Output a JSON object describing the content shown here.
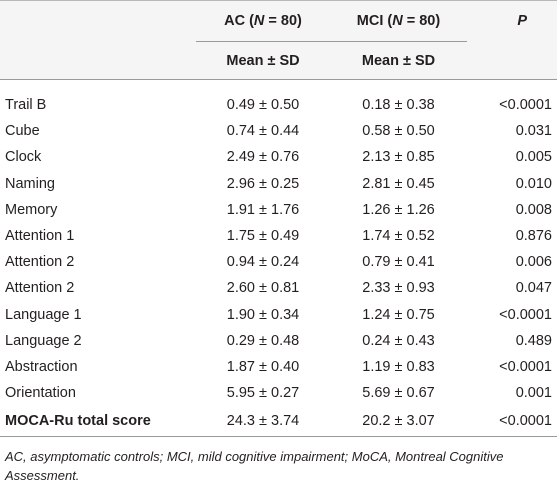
{
  "header": {
    "col_ac_name": "AC (",
    "col_ac_n": "N",
    "col_ac_val": " = 80)",
    "col_mci_name": "MCI (",
    "col_mci_n": "N",
    "col_mci_val": " = 80)",
    "col_p": "P",
    "sub_ac": "Mean ± SD",
    "sub_mci": "Mean ± SD"
  },
  "rows": [
    {
      "label": "Trail B",
      "ac": "0.49 ± 0.50",
      "mci": "0.18 ± 0.38",
      "p": "<0.0001"
    },
    {
      "label": "Cube",
      "ac": "0.74 ± 0.44",
      "mci": "0.58 ± 0.50",
      "p": "0.031"
    },
    {
      "label": "Clock",
      "ac": "2.49 ± 0.76",
      "mci": "2.13 ± 0.85",
      "p": "0.005"
    },
    {
      "label": "Naming",
      "ac": "2.96 ± 0.25",
      "mci": "2.81 ± 0.45",
      "p": "0.010"
    },
    {
      "label": "Memory",
      "ac": "1.91 ± 1.76",
      "mci": "1.26 ± 1.26",
      "p": "0.008"
    },
    {
      "label": "Attention 1",
      "ac": "1.75 ± 0.49",
      "mci": "1.74 ± 0.52",
      "p": "0.876"
    },
    {
      "label": "Attention 2",
      "ac": "0.94 ± 0.24",
      "mci": "0.79 ± 0.41",
      "p": "0.006"
    },
    {
      "label": "Attention 2",
      "ac": "2.60 ± 0.81",
      "mci": "2.33 ± 0.93",
      "p": "0.047"
    },
    {
      "label": "Language 1",
      "ac": "1.90 ± 0.34",
      "mci": "1.24 ± 0.75",
      "p": "<0.0001"
    },
    {
      "label": "Language 2",
      "ac": "0.29 ± 0.48",
      "mci": "0.24 ± 0.43",
      "p": "0.489"
    },
    {
      "label": "Abstraction",
      "ac": "1.87 ± 0.40",
      "mci": "1.19 ± 0.83",
      "p": "<0.0001"
    },
    {
      "label": "Orientation",
      "ac": "5.95 ± 0.27",
      "mci": "5.69 ± 0.67",
      "p": "0.001"
    },
    {
      "label": "MOCA-Ru total score",
      "ac": "24.3 ± 3.74",
      "mci": "20.2 ± 3.07",
      "p": "<0.0001"
    }
  ],
  "footnote": "AC, asymptomatic controls; MCI, mild cognitive impairment; MoCA, Montreal Cognitive Assessment."
}
